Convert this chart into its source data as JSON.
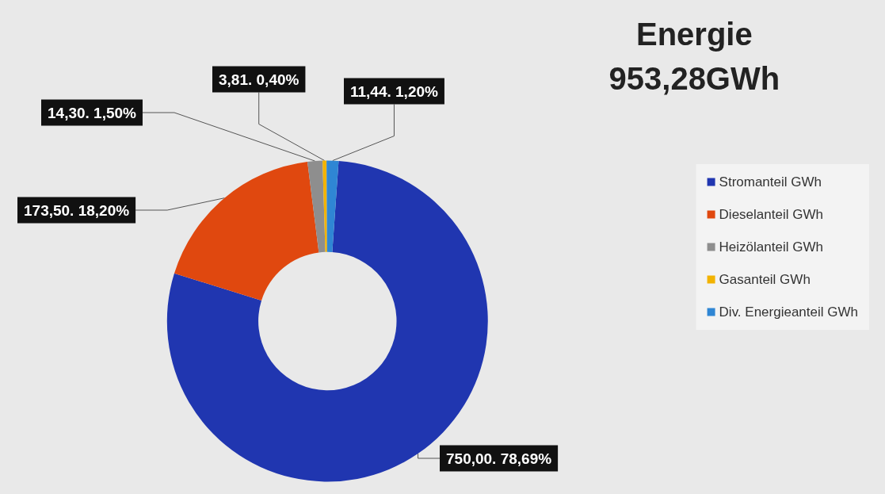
{
  "chart_data": {
    "type": "donut",
    "title": "Energie\n953,28GWh",
    "categories": [
      "Stromanteil GWh",
      "Dieselanteil GWh",
      "Heizölanteil GWh",
      "Gasanteil GWh",
      "Div. Energieanteil GWh"
    ],
    "values": [
      750.0,
      173.5,
      14.3,
      3.81,
      11.44
    ],
    "colors": [
      "#2036b0",
      "#e0480f",
      "#8e8e8e",
      "#f2b300",
      "#2f86d4"
    ],
    "value_labels": [
      "750,00. 78,69%",
      "173,50. 18,20%",
      "14,30. 1,50%",
      "3,81. 0,40%",
      "11,44. 1,20%"
    ],
    "legend": "right"
  }
}
